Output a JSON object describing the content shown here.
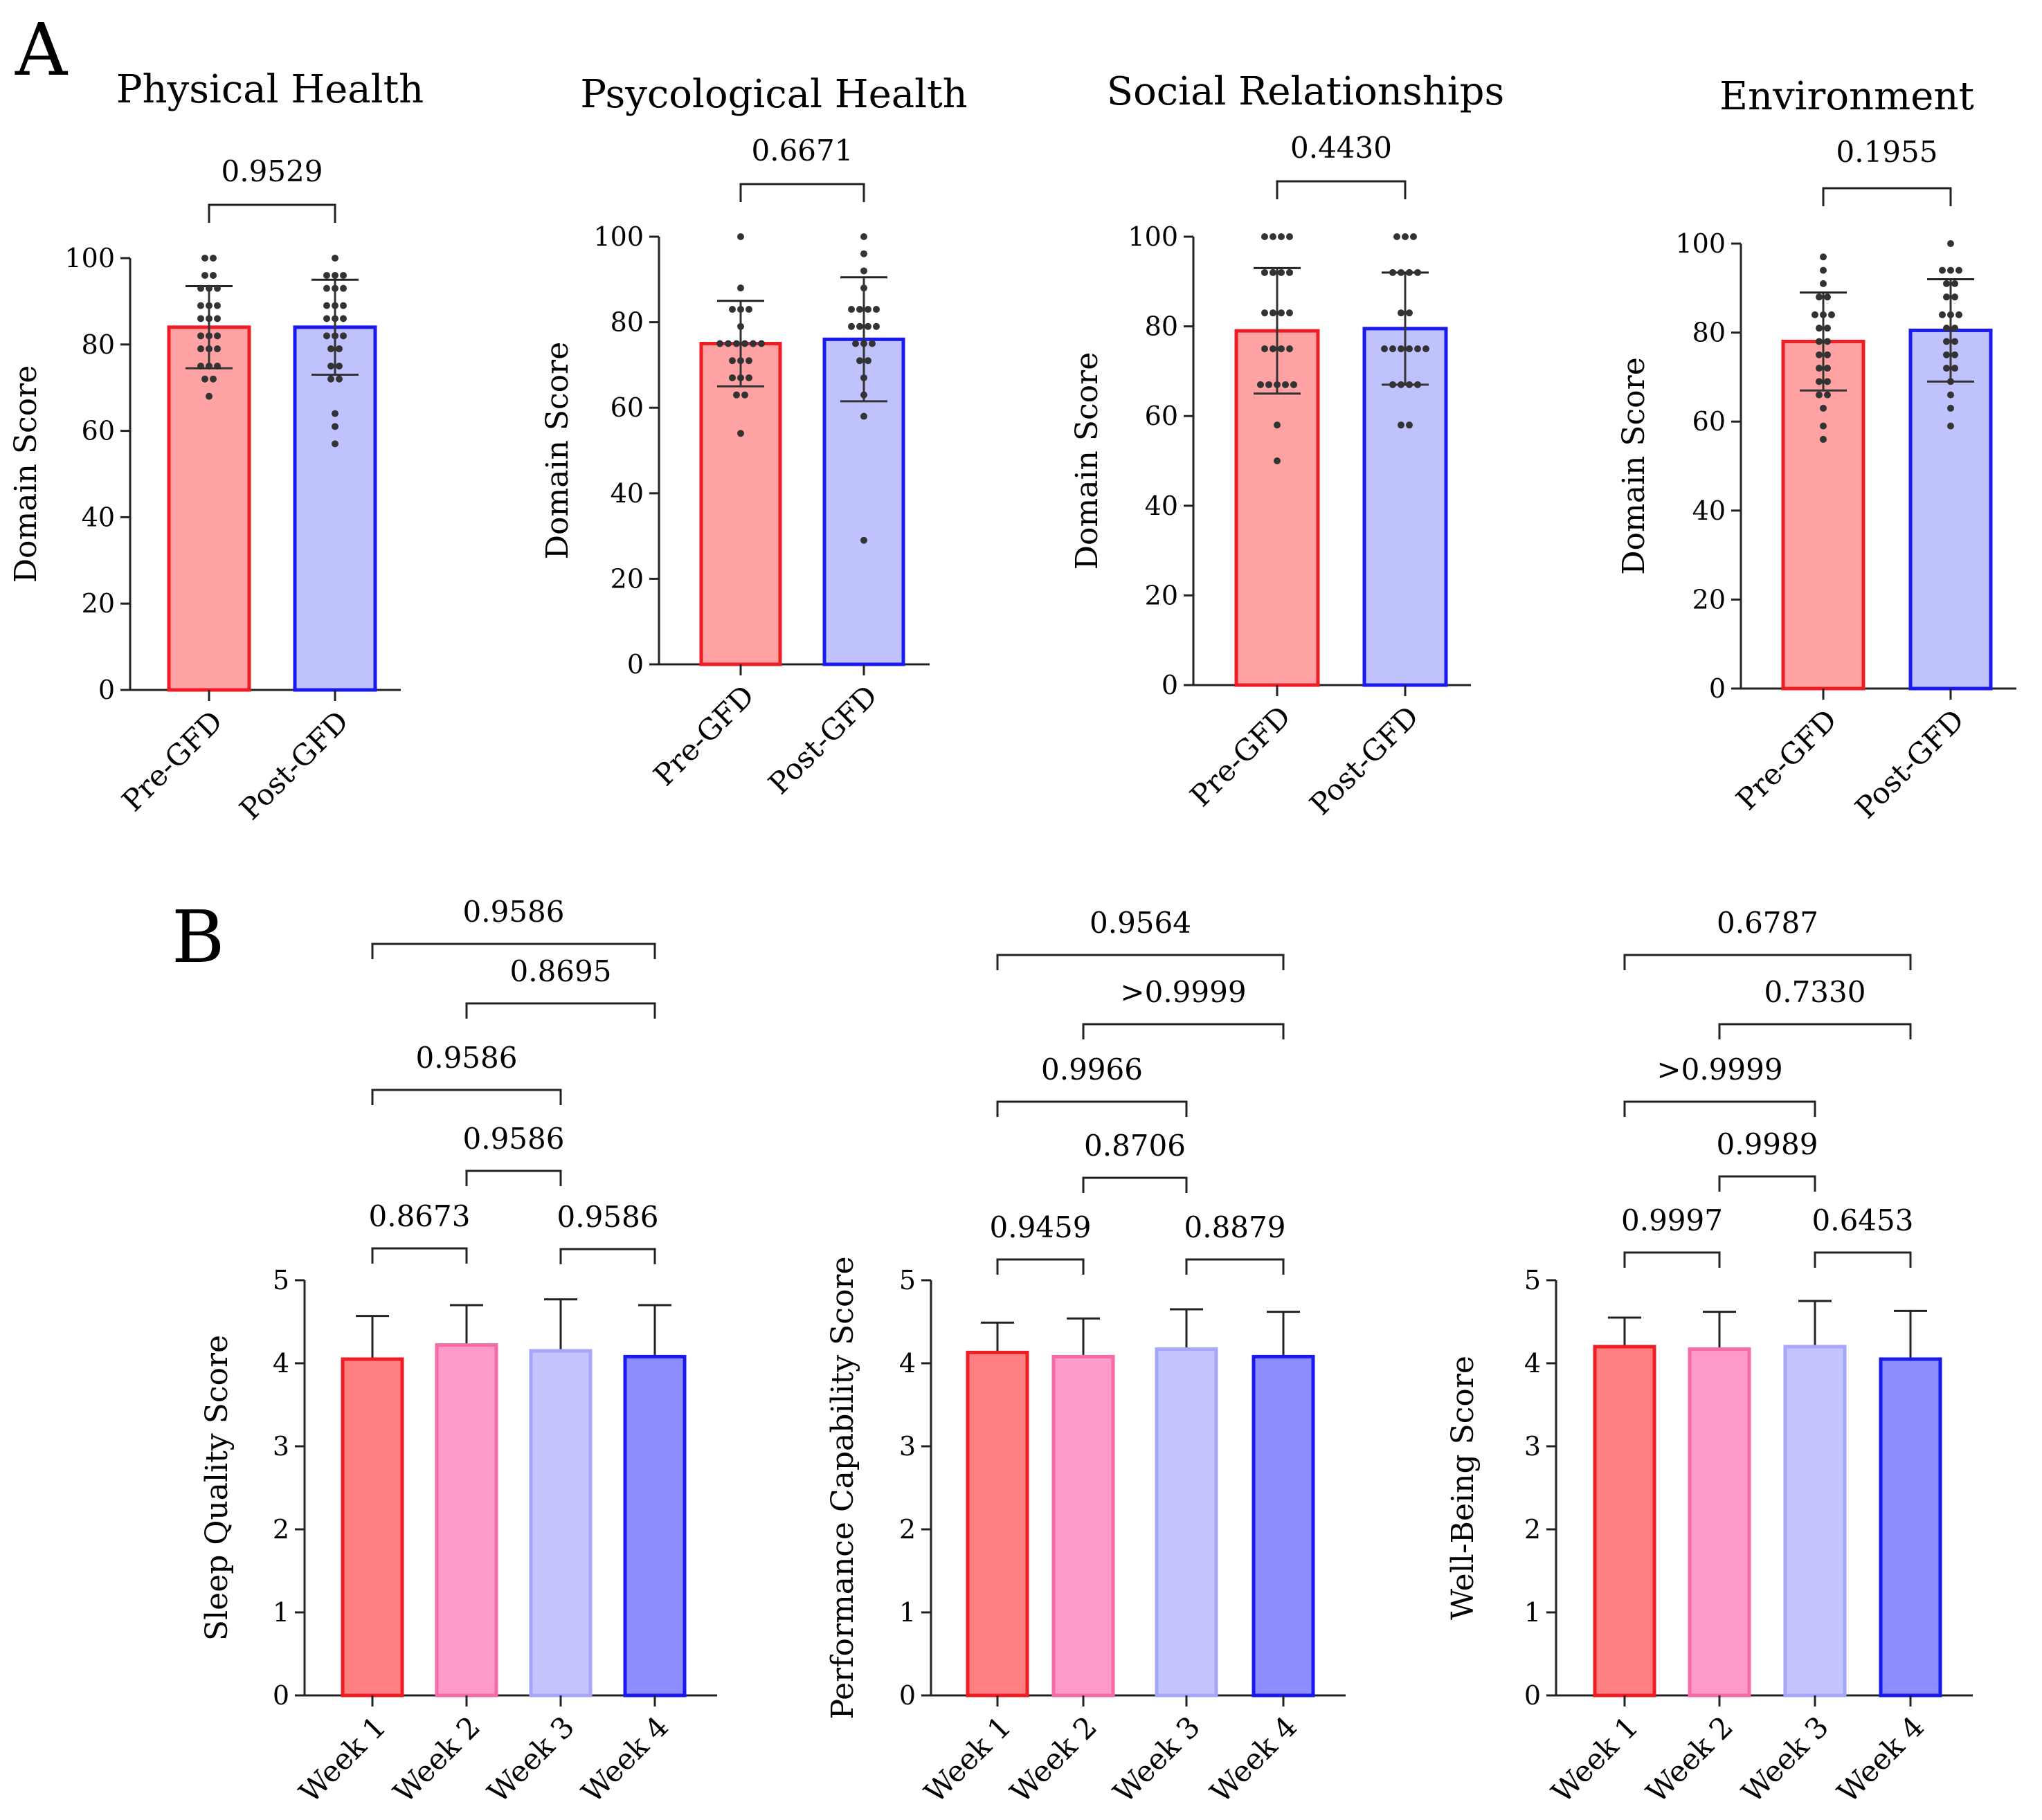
{
  "panels": {
    "A": "A",
    "B": "B"
  },
  "colors": {
    "red_edge": "#ee1c25",
    "red_fill": "#fea2a4",
    "blue_edge": "#1a1aef",
    "blue_fill": "#c0c2fd",
    "wk1_fill": "#fe8081",
    "wk1_edge": "#ee1c25",
    "wk2_fill": "#fd9ac8",
    "wk2_edge": "#f46ba8",
    "wk3_fill": "#c4c4fe",
    "wk3_edge": "#a6a6fb",
    "wk4_fill": "#8d8dfd",
    "wk4_edge": "#1a1aef"
  },
  "chart_data": [
    {
      "panel": "A",
      "type": "bar",
      "title": "Physical Health",
      "ylabel": "Domain Score",
      "ylim": [
        0,
        100
      ],
      "yticks": [
        0,
        20,
        40,
        60,
        80,
        100
      ],
      "categories": [
        "Pre-GFD",
        "Post-GFD"
      ],
      "values": [
        84,
        84
      ],
      "sd": [
        9.5,
        11
      ],
      "points": [
        [
          100,
          100,
          96,
          96,
          93,
          93,
          93,
          89,
          89,
          89,
          86,
          86,
          86,
          82,
          82,
          82,
          79,
          79,
          79,
          75,
          75,
          75,
          72,
          72,
          68
        ],
        [
          100,
          96,
          96,
          96,
          93,
          93,
          93,
          89,
          89,
          89,
          86,
          86,
          86,
          82,
          82,
          82,
          79,
          79,
          75,
          75,
          72,
          72,
          64,
          61,
          57
        ]
      ],
      "comparisons": [
        {
          "pair": [
            0,
            1
          ],
          "p": "0.9529"
        }
      ]
    },
    {
      "panel": "A",
      "type": "bar",
      "title": "Psycological Health",
      "ylabel": "Domain Score",
      "ylim": [
        0,
        100
      ],
      "yticks": [
        0,
        20,
        40,
        60,
        80,
        100
      ],
      "categories": [
        "Pre-GFD",
        "Post-GFD"
      ],
      "values": [
        75,
        76
      ],
      "sd": [
        10,
        14.5
      ],
      "points": [
        [
          100,
          88,
          83,
          83,
          83,
          79,
          75,
          75,
          75,
          75,
          75,
          75,
          71,
          71,
          71,
          67,
          67,
          67,
          63,
          63,
          54
        ],
        [
          100,
          96,
          92,
          88,
          83,
          83,
          83,
          83,
          79,
          79,
          79,
          79,
          75,
          75,
          75,
          71,
          71,
          67,
          63,
          58,
          29
        ]
      ],
      "comparisons": [
        {
          "pair": [
            0,
            1
          ],
          "p": "0.6671"
        }
      ]
    },
    {
      "panel": "A",
      "type": "bar",
      "title": "Social Relationships",
      "ylabel": "Domain Score",
      "ylim": [
        0,
        100
      ],
      "yticks": [
        0,
        20,
        40,
        60,
        80,
        100
      ],
      "categories": [
        "Pre-GFD",
        "Post-GFD"
      ],
      "values": [
        79,
        79.5
      ],
      "sd": [
        14,
        12.5
      ],
      "points": [
        [
          100,
          100,
          100,
          100,
          92,
          92,
          92,
          92,
          83,
          83,
          83,
          83,
          75,
          75,
          75,
          75,
          67,
          67,
          67,
          67,
          67,
          58,
          50
        ],
        [
          100,
          100,
          100,
          92,
          92,
          92,
          92,
          83,
          83,
          75,
          75,
          75,
          75,
          75,
          75,
          67,
          67,
          67,
          67,
          58,
          58
        ]
      ],
      "comparisons": [
        {
          "pair": [
            0,
            1
          ],
          "p": "0.4430"
        }
      ]
    },
    {
      "panel": "A",
      "type": "bar",
      "title": "Environment",
      "ylabel": "Domain Score",
      "ylim": [
        0,
        100
      ],
      "yticks": [
        0,
        20,
        40,
        60,
        80,
        100
      ],
      "categories": [
        "Pre-GFD",
        "Post-GFD"
      ],
      "values": [
        78,
        80.5
      ],
      "sd": [
        11,
        11.5
      ],
      "points": [
        [
          97,
          94,
          91,
          88,
          88,
          84,
          84,
          84,
          81,
          81,
          78,
          78,
          75,
          75,
          72,
          72,
          69,
          69,
          66,
          66,
          63,
          59,
          56
        ],
        [
          100,
          94,
          94,
          94,
          91,
          91,
          88,
          88,
          84,
          84,
          84,
          81,
          81,
          78,
          78,
          75,
          75,
          72,
          72,
          69,
          66,
          63,
          59
        ]
      ],
      "comparisons": [
        {
          "pair": [
            0,
            1
          ],
          "p": "0.1955"
        }
      ]
    },
    {
      "panel": "B",
      "type": "bar",
      "title": "",
      "ylabel": "Sleep Quality Score",
      "ylim": [
        0,
        5
      ],
      "yticks": [
        0,
        1,
        2,
        3,
        4,
        5
      ],
      "categories": [
        "Week 1",
        "Week 2",
        "Week 3",
        "Week 4"
      ],
      "values": [
        4.05,
        4.22,
        4.15,
        4.08
      ],
      "sd": [
        0.52,
        0.48,
        0.62,
        0.62
      ],
      "comparisons": [
        {
          "pair": [
            0,
            1
          ],
          "p": "0.8673"
        },
        {
          "pair": [
            2,
            3
          ],
          "p": "0.9586"
        },
        {
          "pair": [
            1,
            2
          ],
          "p": "0.9586"
        },
        {
          "pair": [
            0,
            2
          ],
          "p": "0.9586"
        },
        {
          "pair": [
            1,
            3
          ],
          "p": "0.8695"
        },
        {
          "pair": [
            0,
            3
          ],
          "p": "0.9586"
        }
      ]
    },
    {
      "panel": "B",
      "type": "bar",
      "title": "",
      "ylabel": "Performance Capability Score",
      "ylim": [
        0,
        5
      ],
      "yticks": [
        0,
        1,
        2,
        3,
        4,
        5
      ],
      "categories": [
        "Week 1",
        "Week 2",
        "Week 3",
        "Week 4"
      ],
      "values": [
        4.13,
        4.08,
        4.17,
        4.08
      ],
      "sd": [
        0.36,
        0.46,
        0.48,
        0.54
      ],
      "comparisons": [
        {
          "pair": [
            0,
            1
          ],
          "p": "0.9459"
        },
        {
          "pair": [
            2,
            3
          ],
          "p": "0.8879"
        },
        {
          "pair": [
            1,
            2
          ],
          "p": "0.8706"
        },
        {
          "pair": [
            0,
            2
          ],
          "p": "0.9966"
        },
        {
          "pair": [
            1,
            3
          ],
          "p": ">0.9999"
        },
        {
          "pair": [
            0,
            3
          ],
          "p": "0.9564"
        }
      ]
    },
    {
      "panel": "B",
      "type": "bar",
      "title": "",
      "ylabel": "Well-Being Score",
      "ylim": [
        0,
        5
      ],
      "yticks": [
        0,
        1,
        2,
        3,
        4,
        5
      ],
      "categories": [
        "Week 1",
        "Week 2",
        "Week 3",
        "Week 4"
      ],
      "values": [
        4.2,
        4.17,
        4.2,
        4.05
      ],
      "sd": [
        0.35,
        0.45,
        0.55,
        0.58
      ],
      "comparisons": [
        {
          "pair": [
            0,
            1
          ],
          "p": "0.9997"
        },
        {
          "pair": [
            2,
            3
          ],
          "p": "0.6453"
        },
        {
          "pair": [
            1,
            2
          ],
          "p": "0.9989"
        },
        {
          "pair": [
            0,
            2
          ],
          "p": ">0.9999"
        },
        {
          "pair": [
            1,
            3
          ],
          "p": "0.7330"
        },
        {
          "pair": [
            0,
            3
          ],
          "p": "0.6787"
        }
      ]
    }
  ]
}
